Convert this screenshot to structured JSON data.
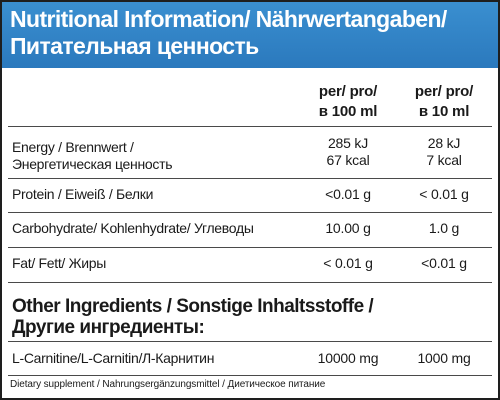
{
  "header": {
    "title_line1": "Nutritional Information/ Nährwertangaben/",
    "title_line2": "Питательная ценность"
  },
  "columns": {
    "per100": {
      "line1": "per/ pro/",
      "line2": "в 100 ml"
    },
    "per10": {
      "line1": "per/ pro/",
      "line2": "в 10 ml"
    }
  },
  "nutrients": [
    {
      "name_line1": "Energy / Brennwert /",
      "name_line2": "Энергетическая ценность",
      "v100_line1": "285 kJ",
      "v100_line2": "67 kcal",
      "v10_line1": "28 kJ",
      "v10_line2": "7 kcal"
    },
    {
      "name": "Protein / Eiweiß / Белки",
      "v100": "<0.01 g",
      "v10": "< 0.01 g"
    },
    {
      "name": "Carbohydrate/ Kohlenhydrate/ Углеводы",
      "v100": "10.00 g",
      "v10": "1.0 g"
    },
    {
      "name": "Fat/ Fett/ Жиры",
      "v100": "< 0.01 g",
      "v10": "<0.01 g"
    }
  ],
  "other_ingredients": {
    "heading_line1": "Other Ingredients / Sonstige Inhaltsstoffe /",
    "heading_line2": "Другие ингредиенты:",
    "items": [
      {
        "name": "L-Carnitine/L-Carnitin/Л-Карнитин",
        "v100": "10000 mg",
        "v10": "1000 mg"
      }
    ]
  },
  "footer": "Dietary supplement / Nahrungsergänzungsmittel / Диетическое питание",
  "colors": {
    "header_blue": "#2f83c6",
    "text": "#1a1a1a",
    "rule": "#4a4a4a"
  }
}
